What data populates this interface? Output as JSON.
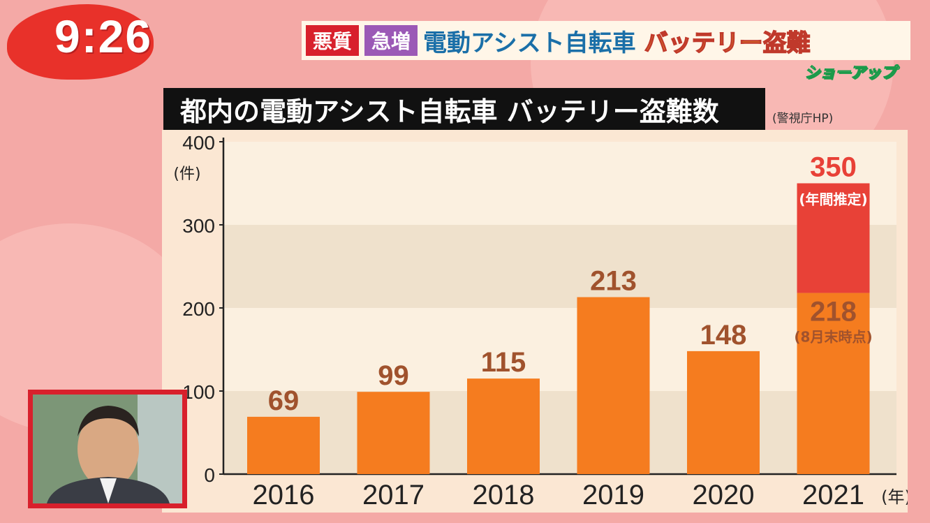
{
  "clock": "9:26",
  "headline": {
    "tag1": "悪質",
    "tag2": "急増",
    "main": "電動アシスト自転車",
    "accent": "バッテリー盗難"
  },
  "show_logo": "ショーアップ",
  "colors": {
    "bar": "#f57c1f",
    "estimate_bar": "#e84137",
    "label": "#a0522d",
    "estimate_label": "#e84137"
  },
  "chart_data": {
    "type": "bar",
    "title": "都内の電動アシスト自転車 バッテリー盗難数",
    "source": "(警視庁HP)",
    "ylabel": "(件)",
    "xunit": "(年)",
    "ylim": [
      0,
      400
    ],
    "yticks": [
      "0",
      "100",
      "200",
      "300",
      "400"
    ],
    "categories": [
      "2016",
      "2017",
      "2018",
      "2019",
      "2020",
      "2021"
    ],
    "values": [
      69,
      99,
      115,
      213,
      148,
      218
    ],
    "value_labels": [
      "69",
      "99",
      "115",
      "213",
      "148",
      "218"
    ],
    "estimate": {
      "category": "2021",
      "value": 350,
      "label": "350",
      "note": "(年間推定)"
    },
    "note_2021": "(8月末時点)",
    "grid": "alternating horizontal bands"
  }
}
